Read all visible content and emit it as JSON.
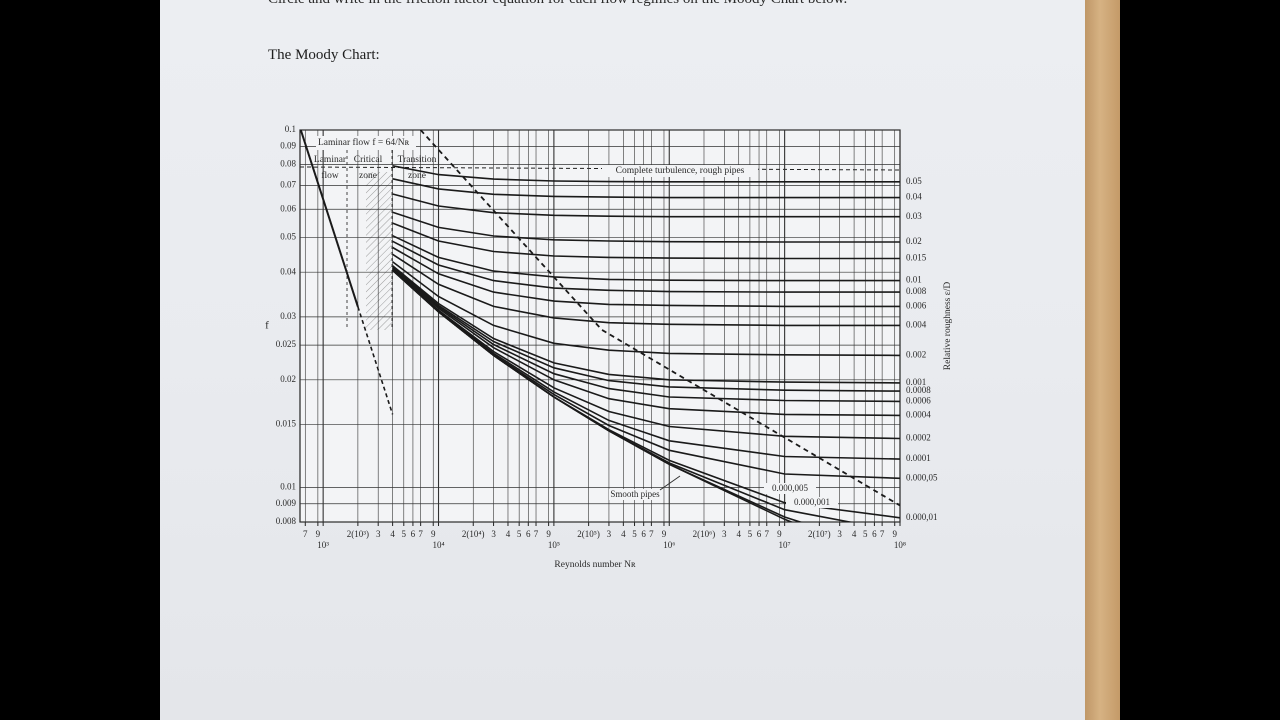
{
  "page": {
    "instruction": "Circle and write in the friction factor equation for each flow regimes on the Moody Chart below.",
    "heading": "The Moody Chart:"
  },
  "chart_data": {
    "type": "line",
    "x_scale": "log",
    "y_scale": "log",
    "grid": true,
    "color": "#1a1a1a",
    "xlabel": "Reynolds number Nʀ",
    "ylabel": "f",
    "y2label": "Relative roughness ε/D",
    "xlim": [
      630,
      100000000
    ],
    "ylim": [
      0.008,
      0.1
    ],
    "xticks": [
      {
        "value": 700,
        "label": "7"
      },
      {
        "value": 900,
        "label": "9"
      },
      {
        "value": 1000,
        "label": "10³"
      },
      {
        "value": 2000,
        "label": "2(10³)"
      },
      {
        "value": 3000,
        "label": "3"
      },
      {
        "value": 4000,
        "label": "4"
      },
      {
        "value": 5000,
        "label": "5"
      },
      {
        "value": 6000,
        "label": "6"
      },
      {
        "value": 7000,
        "label": "7"
      },
      {
        "value": 9000,
        "label": "9"
      },
      {
        "value": 10000,
        "label": "10⁴"
      },
      {
        "value": 20000,
        "label": "2(10⁴)"
      },
      {
        "value": 30000,
        "label": "3"
      },
      {
        "value": 40000,
        "label": "4"
      },
      {
        "value": 50000,
        "label": "5"
      },
      {
        "value": 60000,
        "label": "6"
      },
      {
        "value": 70000,
        "label": "7"
      },
      {
        "value": 90000,
        "label": "9"
      },
      {
        "value": 100000,
        "label": "10⁵"
      },
      {
        "value": 200000,
        "label": "2(10⁵)"
      },
      {
        "value": 300000,
        "label": "3"
      },
      {
        "value": 400000,
        "label": "4"
      },
      {
        "value": 500000,
        "label": "5"
      },
      {
        "value": 600000,
        "label": "6"
      },
      {
        "value": 700000,
        "label": "7"
      },
      {
        "value": 900000,
        "label": "9"
      },
      {
        "value": 1000000,
        "label": "10⁶"
      },
      {
        "value": 2000000,
        "label": "2(10⁶)"
      },
      {
        "value": 3000000,
        "label": "3"
      },
      {
        "value": 4000000,
        "label": "4"
      },
      {
        "value": 5000000,
        "label": "5"
      },
      {
        "value": 6000000,
        "label": "6"
      },
      {
        "value": 7000000,
        "label": "7"
      },
      {
        "value": 9000000,
        "label": "9"
      },
      {
        "value": 10000000,
        "label": "10⁷"
      },
      {
        "value": 20000000,
        "label": "2(10⁷)"
      },
      {
        "value": 30000000,
        "label": "3"
      },
      {
        "value": 40000000,
        "label": "4"
      },
      {
        "value": 50000000,
        "label": "5"
      },
      {
        "value": 60000000,
        "label": "6"
      },
      {
        "value": 70000000,
        "label": "7"
      },
      {
        "value": 90000000,
        "label": "9"
      },
      {
        "value": 100000000,
        "label": "10⁸"
      }
    ],
    "yticks": [
      0.008,
      0.009,
      0.01,
      0.015,
      0.02,
      0.025,
      0.03,
      0.04,
      0.05,
      0.06,
      0.07,
      0.08,
      0.09,
      0.1
    ],
    "x": [
      4000,
      10000,
      30000,
      100000,
      300000,
      1000000,
      10000000,
      100000000
    ],
    "series": [
      {
        "name": "0.05",
        "values": [
          0.0794,
          0.075,
          0.0729,
          0.072,
          0.0717,
          0.0716,
          0.0716,
          0.0716
        ]
      },
      {
        "name": "0.04",
        "values": [
          0.073,
          0.0684,
          0.0661,
          0.0652,
          0.0649,
          0.0647,
          0.0647,
          0.0647
        ]
      },
      {
        "name": "0.03",
        "values": [
          0.0662,
          0.0613,
          0.0587,
          0.0577,
          0.0574,
          0.0572,
          0.0572,
          0.0572
        ]
      },
      {
        "name": "0.02",
        "values": [
          0.0589,
          0.0534,
          0.0505,
          0.0493,
          0.0489,
          0.0487,
          0.0486,
          0.0486
        ]
      },
      {
        "name": "0.015",
        "values": [
          0.0549,
          0.0489,
          0.0457,
          0.0444,
          0.044,
          0.0438,
          0.0437,
          0.0437
        ]
      },
      {
        "name": "0.01",
        "values": [
          0.0506,
          0.044,
          0.0403,
          0.0388,
          0.0382,
          0.038,
          0.0379,
          0.0379
        ]
      },
      {
        "name": "0.008",
        "values": [
          0.0488,
          0.0419,
          0.0379,
          0.0361,
          0.0356,
          0.0353,
          0.0352,
          0.0352
        ]
      },
      {
        "name": "0.006",
        "values": [
          0.0469,
          0.0396,
          0.0352,
          0.0332,
          0.0325,
          0.0323,
          0.0321,
          0.0321
        ]
      },
      {
        "name": "0.004",
        "values": [
          0.0449,
          0.037,
          0.0321,
          0.0298,
          0.0289,
          0.0286,
          0.0284,
          0.0284
        ]
      },
      {
        "name": "0.002",
        "values": [
          0.0428,
          0.0342,
          0.0284,
          0.0253,
          0.0242,
          0.0237,
          0.0235,
          0.0234
        ]
      },
      {
        "name": "0.001",
        "values": [
          0.0417,
          0.0327,
          0.0261,
          0.0223,
          0.0207,
          0.02,
          0.0197,
          0.0196
        ]
      },
      {
        "name": "0.0008",
        "values": [
          0.0415,
          0.0323,
          0.0256,
          0.0216,
          0.0199,
          0.0191,
          0.0187,
          0.0186
        ]
      },
      {
        "name": "0.0006",
        "values": [
          0.0412,
          0.032,
          0.0251,
          0.0208,
          0.0189,
          0.0179,
          0.0175,
          0.0174
        ]
      },
      {
        "name": "0.0004",
        "values": [
          0.041,
          0.0317,
          0.0246,
          0.02,
          0.0177,
          0.0166,
          0.016,
          0.0159
        ]
      },
      {
        "name": "0.0002",
        "values": [
          0.0408,
          0.0313,
          0.024,
          0.019,
          0.0163,
          0.0148,
          0.0139,
          0.0137
        ]
      },
      {
        "name": "0.0001",
        "values": [
          0.0407,
          0.0311,
          0.0237,
          0.0185,
          0.0154,
          0.0135,
          0.0122,
          0.012
        ]
      },
      {
        "name": "0.000,05",
        "values": [
          0.0406,
          0.0311,
          0.0235,
          0.0182,
          0.0149,
          0.0127,
          0.0109,
          0.0106
        ]
      },
      {
        "name": "0.000,01",
        "values": [
          0.0405,
          0.031,
          0.0234,
          0.0179,
          0.0145,
          0.0119,
          0.00906,
          0.00822
        ]
      },
      {
        "name": "0.000,005",
        "values": [
          0.0405,
          0.031,
          0.0234,
          0.0179,
          0.0144,
          0.0117,
          0.00866,
          0.00752
        ]
      },
      {
        "name": "0.000,001",
        "values": [
          0.0405,
          0.031,
          0.0234,
          0.0179,
          0.0144,
          0.0116,
          0.00826,
          0.00651
        ]
      },
      {
        "name": "Smooth pipes",
        "values": [
          0.0405,
          0.031,
          0.0234,
          0.0179,
          0.0144,
          0.0116,
          0.00814,
          0.00603
        ]
      }
    ],
    "laminar": {
      "x": [
        640,
        2000
      ],
      "values": [
        0.1,
        0.032
      ]
    },
    "laminar_extension": {
      "x": [
        2000,
        4000
      ],
      "values": [
        0.032,
        0.016
      ]
    },
    "rough_boundary": {
      "x": [
        7000,
        260000,
        100000000
      ],
      "values": [
        0.1,
        0.0276,
        0.0089
      ]
    },
    "annotations": [
      "Laminar flow f = 64/Nʀ",
      "Complete turbulence, rough pipes"
    ],
    "zones": [
      [
        "Laminar",
        "flow"
      ],
      [
        "Critical",
        "zone"
      ],
      [
        "Transition",
        "zone"
      ]
    ]
  }
}
